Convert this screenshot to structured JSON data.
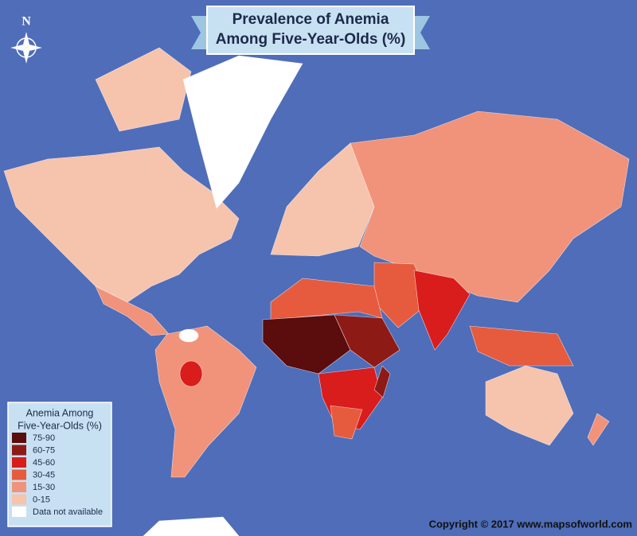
{
  "title": [
    "Prevalence of Anemia",
    "Among Five-Year-Olds (%)"
  ],
  "compass": "N",
  "legend": {
    "title": [
      "Anemia Among",
      "Five-Year-Olds (%)"
    ],
    "items": [
      {
        "label": "75-90",
        "color": "#5b0c0c"
      },
      {
        "label": "60-75",
        "color": "#8e1a16"
      },
      {
        "label": "45-60",
        "color": "#d91c1c"
      },
      {
        "label": "30-45",
        "color": "#e65a3e"
      },
      {
        "label": "15-30",
        "color": "#f0937a"
      },
      {
        "label": "0-15",
        "color": "#f6c3ad"
      },
      {
        "label": "Data not available",
        "color": "#ffffff"
      }
    ]
  },
  "copyright": "Copyright © 2017 www.mapsofworld.com"
}
